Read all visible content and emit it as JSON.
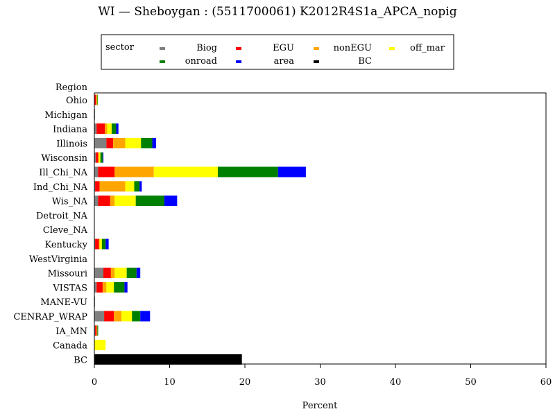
{
  "chart_data": {
    "type": "bar",
    "orientation": "horizontal",
    "stacked": true,
    "title": "WI — Sheboygan : (5511700061) K2012R4S1a_APCA_nopig",
    "xlabel": "Percent",
    "ylabel": "Region",
    "xlim": [
      0,
      60
    ],
    "xticks": [
      "0",
      "10",
      "20",
      "30",
      "40",
      "50",
      "60"
    ],
    "grid": false,
    "legend": {
      "placement": "top-center",
      "title": "sector",
      "entries": [
        "Biog",
        "EGU",
        "nonEGU",
        "off_mar",
        "onroad",
        "area",
        "BC"
      ]
    },
    "categories": [
      "Ohio",
      "Michigan",
      "Indiana",
      "Illinois",
      "Wisconsin",
      "Ill_Chi_NA",
      "Ind_Chi_NA",
      "Wis_NA",
      "Detroit_NA",
      "Cleve_NA",
      "Kentucky",
      "WestVirginia",
      "Missouri",
      "VISTAS",
      "MANE-VU",
      "CENRAP_WRAP",
      "IA_MN",
      "Canada",
      "BC"
    ],
    "series": [
      {
        "name": "Biog",
        "color": "#808080",
        "values": [
          0.05,
          0.1,
          0.3,
          1.6,
          0.2,
          0.5,
          0.1,
          0.5,
          0,
          0,
          0.1,
          0,
          1.2,
          0.3,
          0.1,
          1.3,
          0.1,
          0,
          0
        ]
      },
      {
        "name": "EGU",
        "color": "#ff0000",
        "values": [
          0.2,
          0,
          1.1,
          0.9,
          0.3,
          2.2,
          0.6,
          1.6,
          0,
          0,
          0.5,
          0,
          1.0,
          0.8,
          0,
          1.3,
          0.2,
          0,
          0
        ]
      },
      {
        "name": "nonEGU",
        "color": "#ffa500",
        "values": [
          0.1,
          0,
          0.3,
          1.6,
          0.1,
          5.2,
          3.4,
          0.6,
          0,
          0,
          0.1,
          0,
          0.5,
          0.5,
          0,
          1.0,
          0.1,
          0,
          0
        ]
      },
      {
        "name": "off_mar",
        "color": "#ffff00",
        "values": [
          0.05,
          0,
          0.6,
          2.1,
          0.2,
          8.5,
          1.2,
          2.8,
          0,
          0,
          0.3,
          0,
          1.6,
          1.0,
          0,
          1.4,
          0,
          1.5,
          0
        ]
      },
      {
        "name": "onroad",
        "color": "#008000",
        "values": [
          0.05,
          0,
          0.6,
          1.5,
          0.3,
          8.0,
          0.7,
          3.8,
          0,
          0,
          0.5,
          0,
          1.3,
          1.4,
          0,
          1.1,
          0.1,
          0,
          0
        ]
      },
      {
        "name": "area",
        "color": "#0000ff",
        "values": [
          0,
          0,
          0.3,
          0.5,
          0.1,
          3.7,
          0.3,
          1.7,
          0,
          0,
          0.4,
          0,
          0.5,
          0.4,
          0,
          1.3,
          0,
          0,
          0
        ]
      },
      {
        "name": "BC",
        "color": "#000000",
        "values": [
          0,
          0,
          0,
          0,
          0,
          0,
          0,
          0,
          0,
          0,
          0,
          0,
          0,
          0,
          0,
          0,
          0,
          0,
          19.6
        ]
      }
    ]
  }
}
